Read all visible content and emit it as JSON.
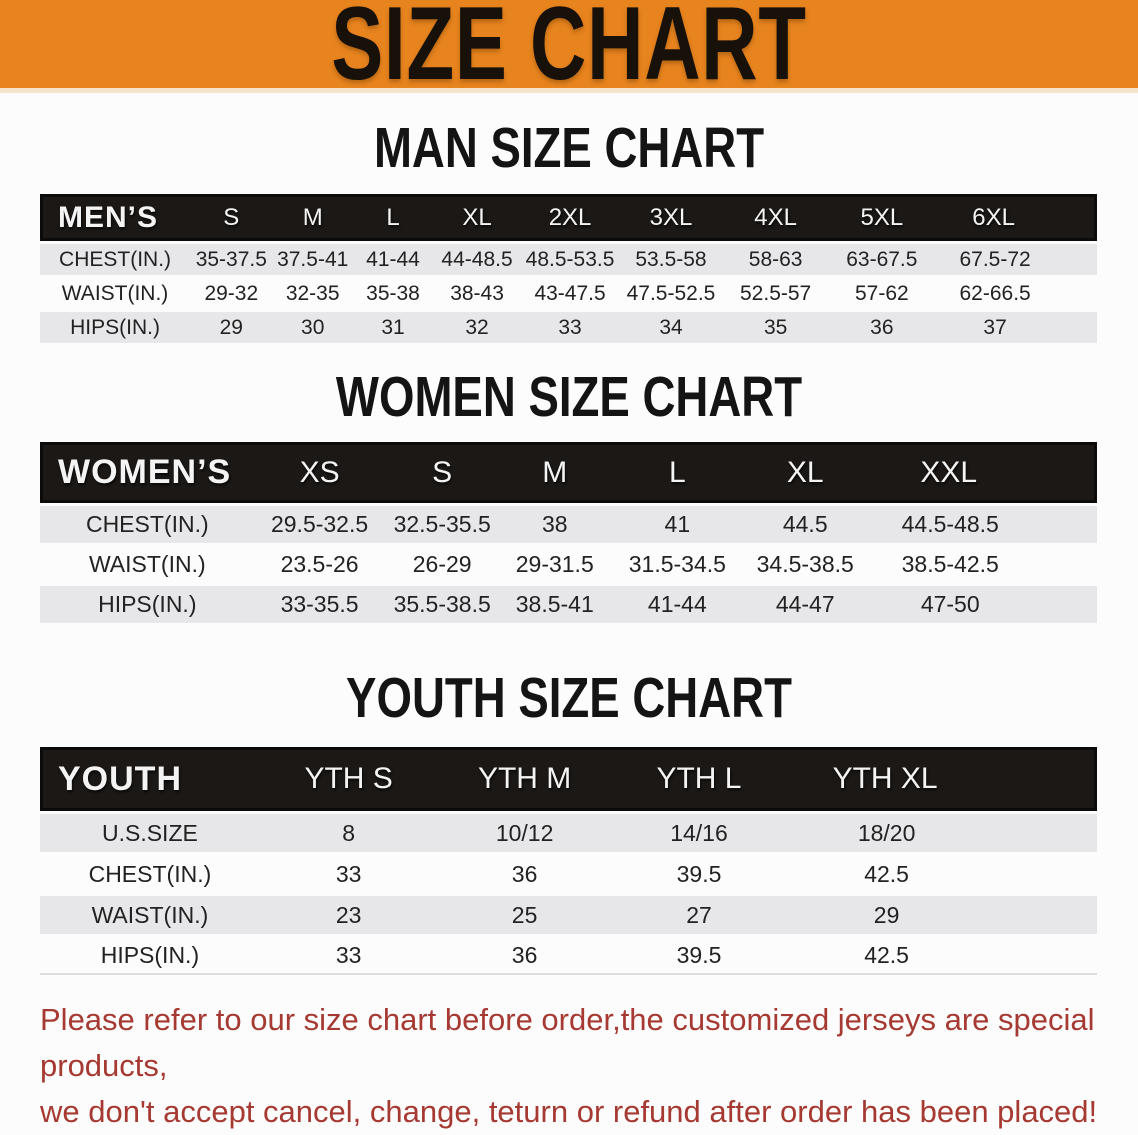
{
  "banner": {
    "title": "SIZE CHART",
    "background": "#E8841E",
    "text_color": "#17110A"
  },
  "sections": [
    {
      "heading": "MAN SIZE CHART",
      "corner_label": "MEN’S",
      "columns": [
        "S",
        "M",
        "L",
        "XL",
        "2XL",
        "3XL",
        "4XL",
        "5XL",
        "6XL"
      ],
      "rows": [
        {
          "label": "CHEST(IN.)",
          "values": [
            "35-37.5",
            "37.5-41",
            "41-44",
            "44-48.5",
            "48.5-53.5",
            "53.5-58",
            "58-63",
            "63-67.5",
            "67.5-72"
          ]
        },
        {
          "label": "WAIST(IN.)",
          "values": [
            "29-32",
            "32-35",
            "35-38",
            "38-43",
            "43-47.5",
            "47.5-52.5",
            "52.5-57",
            "57-62",
            "62-66.5"
          ]
        },
        {
          "label": "HIPS(IN.)",
          "values": [
            "29",
            "30",
            "31",
            "32",
            "33",
            "34",
            "35",
            "36",
            "37"
          ]
        }
      ]
    },
    {
      "heading": "WOMEN SIZE CHART",
      "corner_label": "WOMEN’S",
      "columns": [
        "XS",
        "S",
        "M",
        "L",
        "XL",
        "XXL"
      ],
      "rows": [
        {
          "label": "CHEST(IN.)",
          "values": [
            "29.5-32.5",
            "32.5-35.5",
            "38",
            "41",
            "44.5",
            "44.5-48.5"
          ]
        },
        {
          "label": "WAIST(IN.)",
          "values": [
            "23.5-26",
            "26-29",
            "29-31.5",
            "31.5-34.5",
            "34.5-38.5",
            "38.5-42.5"
          ]
        },
        {
          "label": "HIPS(IN.)",
          "values": [
            "33-35.5",
            "35.5-38.5",
            "38.5-41",
            "41-44",
            "44-47",
            "47-50"
          ]
        }
      ]
    },
    {
      "heading": "YOUTH SIZE CHART",
      "corner_label": "YOUTH",
      "columns": [
        "YTH S",
        "YTH M",
        "YTH L",
        "YTH XL"
      ],
      "rows": [
        {
          "label": "U.S.SIZE",
          "values": [
            "8",
            "10/12",
            "14/16",
            "18/20"
          ]
        },
        {
          "label": "CHEST(IN.)",
          "values": [
            "33",
            "36",
            "39.5",
            "42.5"
          ]
        },
        {
          "label": "WAIST(IN.)",
          "values": [
            "23",
            "25",
            "27",
            "29"
          ]
        },
        {
          "label": "HIPS(IN.)",
          "values": [
            "33",
            "36",
            "39.5",
            "42.5"
          ]
        }
      ]
    }
  ],
  "footnote": {
    "line1": "Please refer to our size chart before order,the customized jerseys are special products,",
    "line2": "we don't accept cancel, change, teturn or refund after order has been placed!",
    "color": "#A63A32"
  }
}
